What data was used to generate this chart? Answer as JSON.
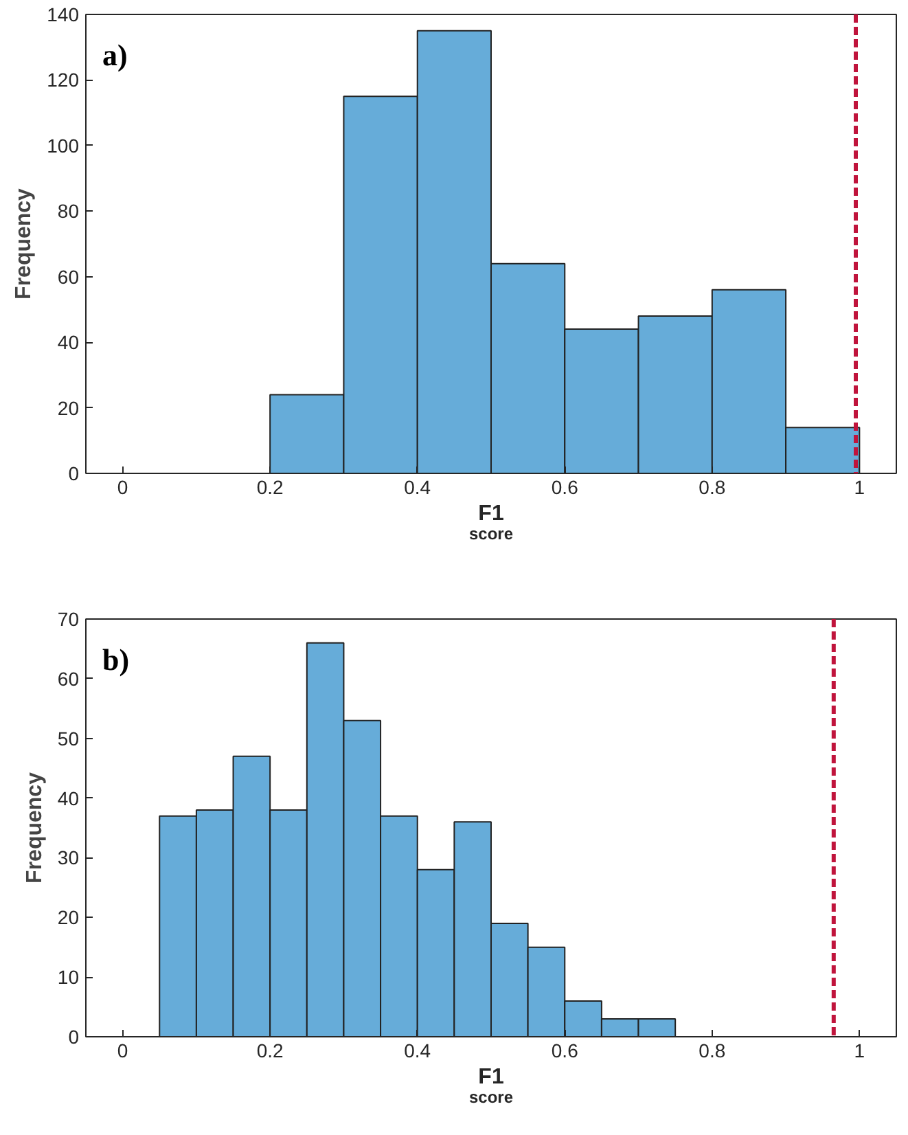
{
  "chart_data": [
    {
      "type": "histogram",
      "xlabel": "F1$_{score}$",
      "ylabel": "Frequency",
      "annotations": [
        "a)"
      ],
      "color": "#66acd9",
      "bins": [
        0.2,
        0.3,
        0.4,
        0.5,
        0.6,
        0.7,
        0.8,
        0.9,
        1.0
      ],
      "values": [
        24,
        115,
        135,
        64,
        44,
        48,
        56,
        14
      ],
      "xlim": [
        -0.05,
        1.05
      ],
      "xticks": [
        0,
        0.2,
        0.4,
        0.6,
        0.8,
        1
      ],
      "ylim": [
        0,
        140
      ],
      "yticks": [
        0,
        20,
        40,
        60,
        80,
        100,
        120,
        140
      ],
      "ref_lines": [
        {
          "axis": "x",
          "value": 0.995,
          "color": "#c0143c",
          "line_style": "dashed"
        }
      ],
      "grid": false
    },
    {
      "type": "histogram",
      "xlabel": "F1$_{score}$",
      "ylabel": "Frequency",
      "annotations": [
        "b)"
      ],
      "color": "#66acd9",
      "bins": [
        0.05,
        0.1,
        0.15,
        0.2,
        0.25,
        0.3,
        0.35,
        0.4,
        0.45,
        0.5,
        0.55,
        0.6,
        0.65,
        0.7,
        0.75
      ],
      "values": [
        37,
        38,
        47,
        38,
        66,
        53,
        37,
        28,
        36,
        19,
        15,
        6,
        3,
        3
      ],
      "xlim": [
        -0.05,
        1.05
      ],
      "xticks": [
        0,
        0.2,
        0.4,
        0.6,
        0.8,
        1
      ],
      "ylim": [
        0,
        70
      ],
      "yticks": [
        0,
        10,
        20,
        30,
        40,
        50,
        60,
        70
      ],
      "ref_lines": [
        {
          "axis": "x",
          "value": 0.965,
          "color": "#c0143c",
          "line_style": "dashed"
        }
      ],
      "grid": false
    }
  ]
}
